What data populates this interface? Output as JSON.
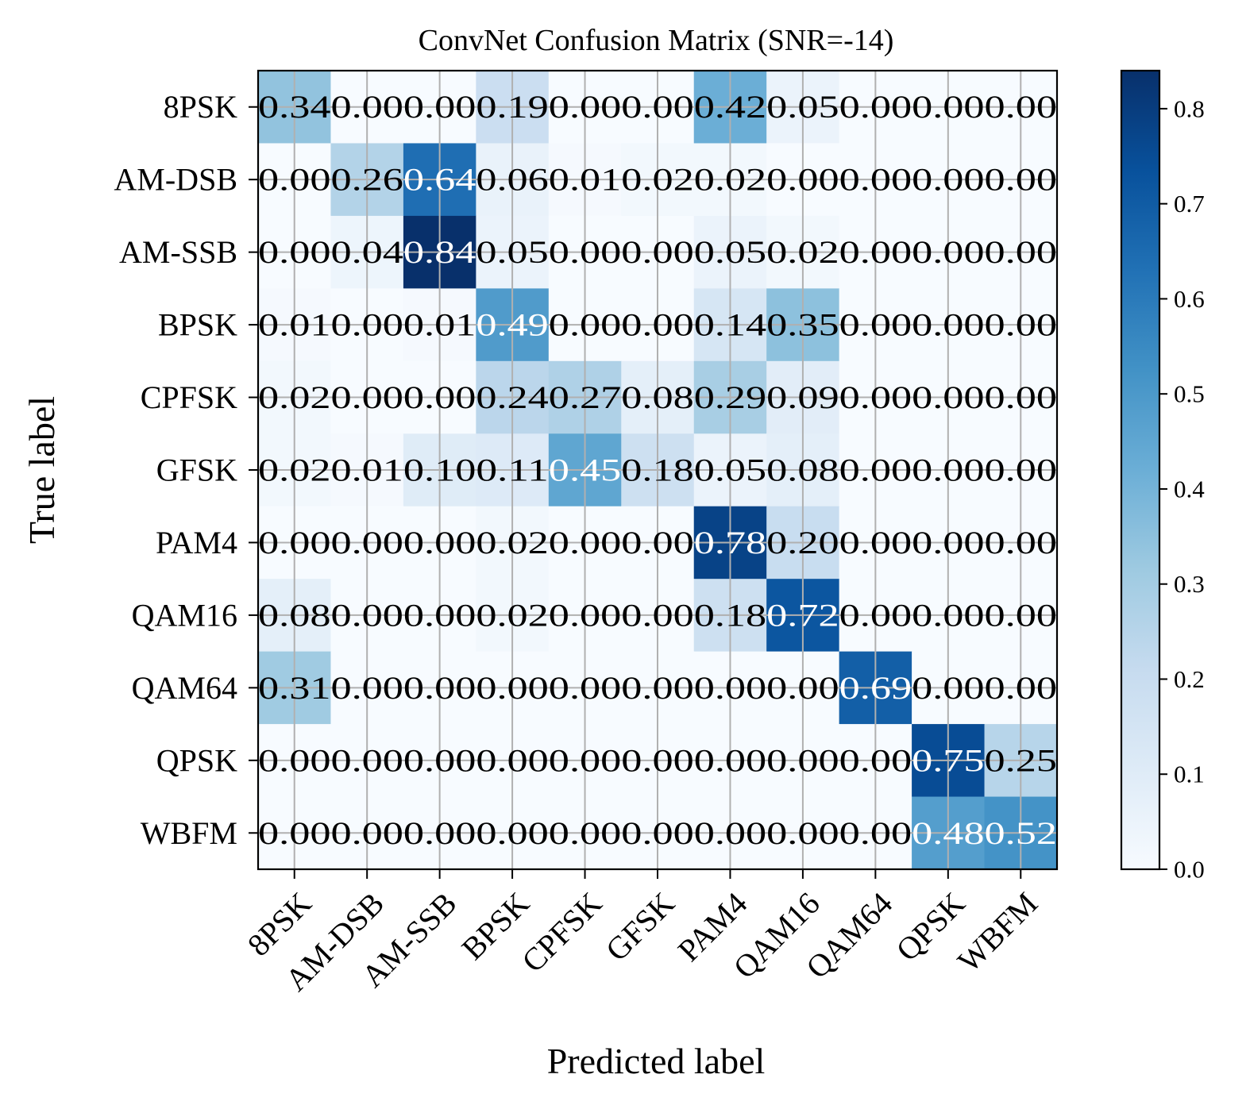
{
  "chart_data": {
    "type": "heatmap",
    "title": "ConvNet Confusion Matrix (SNR=-14)",
    "xlabel": "Predicted label",
    "ylabel": "True label",
    "row_labels": [
      "8PSK",
      "AM-DSB",
      "AM-SSB",
      "BPSK",
      "CPFSK",
      "GFSK",
      "PAM4",
      "QAM16",
      "QAM64",
      "QPSK",
      "WBFM"
    ],
    "col_labels": [
      "8PSK",
      "AM-DSB",
      "AM-SSB",
      "BPSK",
      "CPFSK",
      "GFSK",
      "PAM4",
      "QAM16",
      "QAM64",
      "QPSK",
      "WBFM"
    ],
    "values": [
      [
        0.34,
        0.0,
        0.0,
        0.19,
        0.0,
        0.0,
        0.42,
        0.05,
        0.0,
        0.0,
        0.0
      ],
      [
        0.0,
        0.26,
        0.64,
        0.06,
        0.01,
        0.02,
        0.02,
        0.0,
        0.0,
        0.0,
        0.0
      ],
      [
        0.0,
        0.04,
        0.84,
        0.05,
        0.0,
        0.0,
        0.05,
        0.02,
        0.0,
        0.0,
        0.0
      ],
      [
        0.01,
        0.0,
        0.01,
        0.49,
        0.0,
        0.0,
        0.14,
        0.35,
        0.0,
        0.0,
        0.0
      ],
      [
        0.02,
        0.0,
        0.0,
        0.24,
        0.27,
        0.08,
        0.29,
        0.09,
        0.0,
        0.0,
        0.0
      ],
      [
        0.02,
        0.01,
        0.1,
        0.11,
        0.45,
        0.18,
        0.05,
        0.08,
        0.0,
        0.0,
        0.0
      ],
      [
        0.0,
        0.0,
        0.0,
        0.02,
        0.0,
        0.0,
        0.78,
        0.2,
        0.0,
        0.0,
        0.0
      ],
      [
        0.08,
        0.0,
        0.0,
        0.02,
        0.0,
        0.0,
        0.18,
        0.72,
        0.0,
        0.0,
        0.0
      ],
      [
        0.31,
        0.0,
        0.0,
        0.0,
        0.0,
        0.0,
        0.0,
        0.0,
        0.69,
        0.0,
        0.0
      ],
      [
        0.0,
        0.0,
        0.0,
        0.0,
        0.0,
        0.0,
        0.0,
        0.0,
        0.0,
        0.75,
        0.25
      ],
      [
        0.0,
        0.0,
        0.0,
        0.0,
        0.0,
        0.0,
        0.0,
        0.0,
        0.0,
        0.48,
        0.52
      ]
    ],
    "value_format": "2 decimals",
    "color_scale": {
      "name": "Blues",
      "min": 0.0,
      "max": 0.84,
      "stops": [
        "#f7fbff",
        "#deebf7",
        "#c6dbef",
        "#9ecae1",
        "#6baed6",
        "#4292c6",
        "#2171b5",
        "#08519c",
        "#08306b"
      ]
    },
    "colorbar": {
      "ticks": [
        "0.0",
        "0.1",
        "0.2",
        "0.3",
        "0.4",
        "0.5",
        "0.6",
        "0.7",
        "0.8"
      ],
      "tick_values": [
        0.0,
        0.1,
        0.2,
        0.3,
        0.4,
        0.5,
        0.6,
        0.7,
        0.8
      ]
    },
    "grid": true,
    "xtick_rotation_deg": 45,
    "text_color_light": "#ffffff",
    "text_color_dark": "#000000",
    "text_threshold": 0.42
  }
}
